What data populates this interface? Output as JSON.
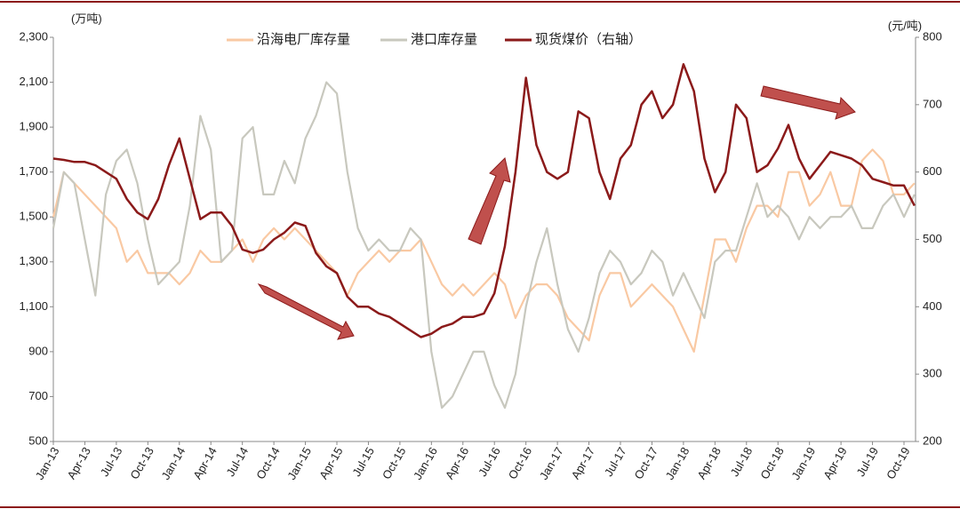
{
  "chart_data": {
    "type": "line",
    "y_unit": "(万吨)",
    "y2_unit": "(元/吨)",
    "categories": [
      "Jan-13",
      null,
      null,
      "Apr-13",
      null,
      null,
      "Jul-13",
      null,
      null,
      "Oct-13",
      null,
      null,
      "Jan-14",
      null,
      null,
      "Apr-14",
      null,
      null,
      "Jul-14",
      null,
      null,
      "Oct-14",
      null,
      null,
      "Jan-15",
      null,
      null,
      "Apr-15",
      null,
      null,
      "Jul-15",
      null,
      null,
      "Oct-15",
      null,
      null,
      "Jan-16",
      null,
      null,
      "Apr-16",
      null,
      null,
      "Jul-16",
      null,
      null,
      "Oct-16",
      null,
      null,
      "Jan-17",
      null,
      null,
      "Apr-17",
      null,
      null,
      "Jul-17",
      null,
      null,
      "Oct-17",
      null,
      null,
      "Jan-18",
      null,
      null,
      "Apr-18",
      null,
      null,
      "Jul-18",
      null,
      null,
      "Oct-18",
      null,
      null,
      "Jan-19",
      null,
      null,
      "Apr-19",
      null,
      null,
      "Jul-19",
      null,
      null,
      "Oct-19",
      null
    ],
    "series": [
      {
        "name": "沿海电厂库存量",
        "color": "#f9c9a3",
        "values": [
          1500,
          1700,
          1650,
          1600,
          1550,
          1500,
          1450,
          1300,
          1350,
          1250,
          1250,
          1250,
          1200,
          1250,
          1350,
          1300,
          1300,
          1350,
          1400,
          1300,
          1400,
          1450,
          1400,
          1450,
          1400,
          1350,
          1300,
          1250,
          1150,
          1250,
          1300,
          1350,
          1300,
          1350,
          1350,
          1400,
          1300,
          1200,
          1150,
          1200,
          1150,
          1200,
          1250,
          1200,
          1050,
          1150,
          1200,
          1200,
          1150,
          1050,
          1000,
          950,
          1150,
          1250,
          1250,
          1100,
          1150,
          1200,
          1150,
          1100,
          1000,
          900,
          1150,
          1400,
          1400,
          1300,
          1450,
          1550,
          1550,
          1500,
          1700,
          1700,
          1550,
          1600,
          1700,
          1550,
          1550,
          1750,
          1800,
          1750,
          1600,
          1600,
          1650
        ]
      },
      {
        "name": "港口库存量",
        "color": "#c8c8be",
        "values": [
          1450,
          1700,
          1650,
          1400,
          1150,
          1600,
          1750,
          1800,
          1650,
          1400,
          1200,
          1250,
          1300,
          1550,
          1950,
          1800,
          1300,
          1350,
          1850,
          1900,
          1600,
          1600,
          1750,
          1650,
          1850,
          1950,
          2100,
          2050,
          1700,
          1450,
          1350,
          1400,
          1350,
          1350,
          1450,
          1400,
          900,
          650,
          700,
          800,
          900,
          900,
          750,
          650,
          800,
          1100,
          1300,
          1450,
          1200,
          1000,
          900,
          1050,
          1250,
          1350,
          1300,
          1200,
          1250,
          1350,
          1300,
          1150,
          1250,
          1150,
          1050,
          1300,
          1350,
          1350,
          1500,
          1650,
          1500,
          1550,
          1500,
          1400,
          1500,
          1450,
          1500,
          1500,
          1550,
          1450,
          1450,
          1550,
          1600,
          1500,
          1600
        ]
      },
      {
        "name": "现货煤价（右轴）",
        "color": "#8b1a1a",
        "axis": "y2",
        "values": [
          620,
          618,
          615,
          615,
          610,
          600,
          590,
          560,
          540,
          530,
          560,
          610,
          650,
          590,
          530,
          540,
          540,
          520,
          485,
          480,
          485,
          500,
          510,
          525,
          520,
          480,
          460,
          450,
          415,
          400,
          400,
          390,
          385,
          375,
          365,
          355,
          360,
          370,
          375,
          385,
          385,
          390,
          420,
          490,
          600,
          740,
          640,
          600,
          590,
          600,
          690,
          680,
          600,
          560,
          620,
          640,
          700,
          720,
          680,
          700,
          760,
          720,
          620,
          570,
          600,
          700,
          680,
          600,
          610,
          635,
          670,
          620,
          590,
          610,
          630,
          625,
          620,
          610,
          590,
          585,
          580,
          580,
          550
        ]
      }
    ],
    "ylim": [
      500,
      2300
    ],
    "yticks": [
      500,
      700,
      900,
      {
        "value": 1100,
        "label": "1,100"
      },
      {
        "value": 1300,
        "label": "1,300"
      },
      {
        "value": 1500,
        "label": "1,500"
      },
      {
        "value": 1700,
        "label": "1,700"
      },
      {
        "value": 1900,
        "label": "1,900"
      },
      {
        "value": 2100,
        "label": "2,100"
      },
      {
        "value": 2300,
        "label": "2,300"
      }
    ],
    "y2lim": [
      200,
      800
    ],
    "y2ticks": [
      200,
      300,
      400,
      500,
      600,
      700,
      800
    ],
    "grid": false
  }
}
